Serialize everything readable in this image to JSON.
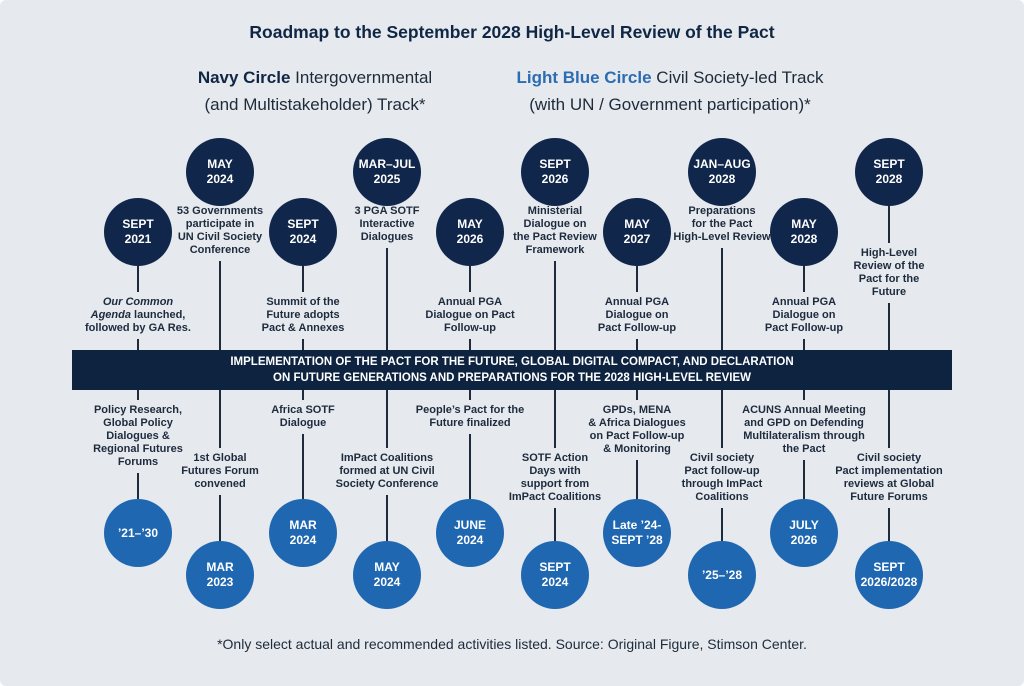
{
  "title": "Roadmap to the September 2028 High-Level Review of the Pact",
  "legend": {
    "navy": {
      "bold": "Navy Circle",
      "line1_rest": " Intergovernmental",
      "line2": "(and Multistakeholder) Track*"
    },
    "blue": {
      "bold": "Light Blue Circle",
      "line1_rest": " Civil Society-led Track",
      "line2": "(with UN / Government participation)*"
    }
  },
  "colors": {
    "navy": "#10264a",
    "light_blue": "#1f67b1",
    "bar": "#0d2340",
    "background": "#e6e9ee"
  },
  "bar": {
    "line1": "IMPLEMENTATION OF THE PACT FOR THE FUTURE, GLOBAL DIGITAL COMPACT, AND DECLARATION",
    "line2": "ON FUTURE GENERATIONS AND PREPARATIONS FOR THE 2028 HIGH-LEVEL REVIEW"
  },
  "intergovernmental": [
    {
      "date": "SEPT\n2021",
      "label_italic": "Our Common\nAgenda",
      "label": " launched,\nfollowed by GA Res."
    },
    {
      "date": "MAY\n2024",
      "label": "53 Governments\nparticipate in\nUN Civil Society\nConference"
    },
    {
      "date": "SEPT\n2024",
      "label": "Summit of the\nFuture adopts\nPact & Annexes"
    },
    {
      "date": "MAR–JUL\n2025",
      "label": "3 PGA SOTF\nInteractive\nDialogues"
    },
    {
      "date": "MAY\n2026",
      "label": "Annual PGA\nDialogue on Pact\nFollow-up"
    },
    {
      "date": "SEPT\n2026",
      "label": "Ministerial\nDialogue on\nthe Pact Review\nFramework"
    },
    {
      "date": "MAY\n2027",
      "label": "Annual PGA\nDialogue on\nPact Follow-up"
    },
    {
      "date": "JAN–AUG\n2028",
      "label": "Preparations\nfor the Pact\nHigh-Level Review"
    },
    {
      "date": "MAY\n2028",
      "label": "Annual PGA\nDialogue on\nPact Follow-up"
    },
    {
      "date": "SEPT\n2028",
      "label": "High-Level\nReview of the\nPact for the\nFuture"
    }
  ],
  "civil_society": [
    {
      "date": "’21–’30",
      "label": "Policy Research,\nGlobal Policy\nDialogues &\nRegional Futures\nForums"
    },
    {
      "date": "MAR\n2023",
      "label": "1st Global\nFutures Forum\nconvened"
    },
    {
      "date": "MAR\n2024",
      "label": "Africa SOTF\nDialogue"
    },
    {
      "date": "MAY\n2024",
      "label": "ImPact Coalitions\nformed at UN Civil\nSociety Conference"
    },
    {
      "date": "JUNE\n2024",
      "label": "People’s Pact for the\nFuture finalized"
    },
    {
      "date": "SEPT\n2024",
      "label": "SOTF Action\nDays with\nsupport from\nImPact Coalitions"
    },
    {
      "date": "Late ’24-\nSEPT ’28",
      "label": "GPDs, MENA\n& Africa Dialogues\non Pact Follow-up\n& Monitoring"
    },
    {
      "date": "’25–’28",
      "label": "Civil society\nPact follow-up\nthrough ImPact\nCoalitions"
    },
    {
      "date": "JULY\n2026",
      "label": "ACUNS Annual Meeting\nand GPD on Defending\nMultilateralism through\nthe Pact"
    },
    {
      "date": "SEPT\n2026/2028",
      "label": "Civil society\nPact implementation\nreviews at Global\nFuture Forums"
    }
  ],
  "footnote": "*Only select actual and recommended activities listed. Source: Original Figure, Stimson Center."
}
